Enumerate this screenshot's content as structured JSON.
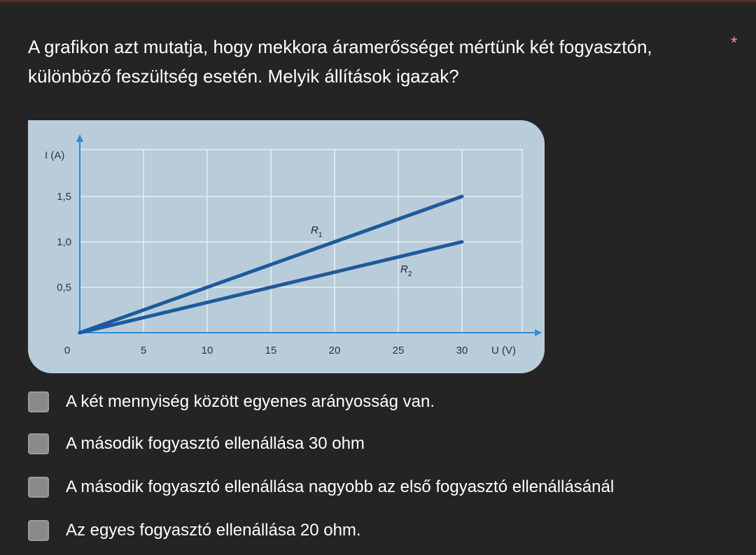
{
  "question": {
    "text_line1": "A grafikon azt mutatja, hogy mekkora áramerősséget mértünk két fogyasztón,",
    "text_line2": "különböző feszültség esetén. Melyik állítások igazak?",
    "required_mark": "*"
  },
  "options": [
    {
      "label": "A két mennyiség között egyenes arányosság van.",
      "checked": false
    },
    {
      "label": "A második fogyasztó ellenállása 30 ohm",
      "checked": false
    },
    {
      "label": "A második fogyasztó ellenállása nagyobb az első fogyasztó ellenállásánál",
      "checked": false
    },
    {
      "label": "Az egyes fogyasztó ellenállása 20 ohm.",
      "checked": false
    }
  ],
  "chart_data": {
    "type": "line",
    "ylabel": "I (A)",
    "xlabel": "U (V)",
    "x_ticks": [
      "5",
      "10",
      "15",
      "20",
      "25",
      "30"
    ],
    "y_ticks": [
      "0,5",
      "1,0",
      "1,5"
    ],
    "origin_label": "0",
    "xlim": [
      0,
      36
    ],
    "ylim": [
      0,
      2
    ],
    "series": [
      {
        "name": "R1",
        "x": [
          0,
          30
        ],
        "y": [
          0,
          1.5
        ]
      },
      {
        "name": "R2",
        "x": [
          0,
          30
        ],
        "y": [
          0,
          1.0
        ]
      }
    ],
    "series_label_subscripts": [
      "1",
      "2"
    ],
    "grid": true,
    "colors": {
      "background": "#b9ccd9",
      "line": "#1d5a9a",
      "axis": "#2a8fd6",
      "grid": "#e6eef4"
    }
  }
}
